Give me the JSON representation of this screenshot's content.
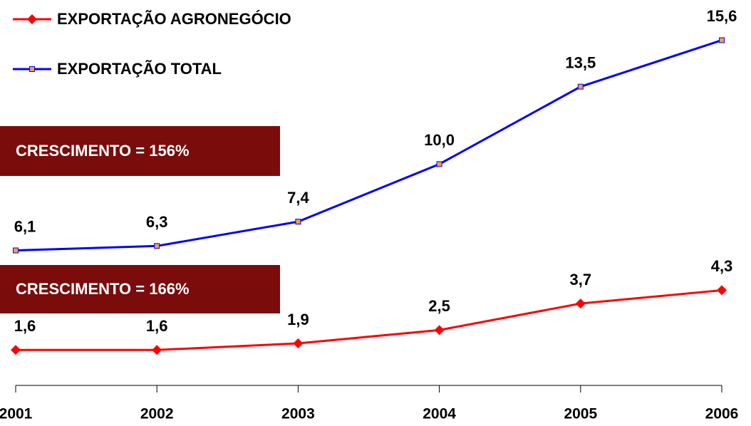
{
  "chart_data": {
    "type": "line",
    "categories": [
      "2001",
      "2002",
      "2003",
      "2004",
      "2005",
      "2006"
    ],
    "series": [
      {
        "name": "EXPORTAÇÃO AGRONEGÓCIO",
        "color": "#ff0000",
        "marker": "diamond",
        "marker_color": "#ff0000",
        "values": [
          1.6,
          1.6,
          1.9,
          2.5,
          3.7,
          4.3
        ],
        "value_labels": [
          "1,6",
          "1,6",
          "1,9",
          "2,5",
          "3,7",
          "4,3"
        ]
      },
      {
        "name": "EXPORTAÇÃO TOTAL",
        "color": "#0000ff",
        "marker": "square",
        "marker_color": "#f0a040",
        "values": [
          6.1,
          6.3,
          7.4,
          10.0,
          13.5,
          15.6
        ],
        "value_labels": [
          "6,1",
          "6,3",
          "7,4",
          "10,0",
          "13,5",
          "15,6"
        ]
      }
    ],
    "annotations": [
      "CRESCIMENTO = 156%",
      "CRESCIMENTO = 166%"
    ],
    "annotation_color": "#7b0c0c",
    "ylim": [
      0,
      16
    ],
    "grid": false,
    "legend": "top-left"
  }
}
